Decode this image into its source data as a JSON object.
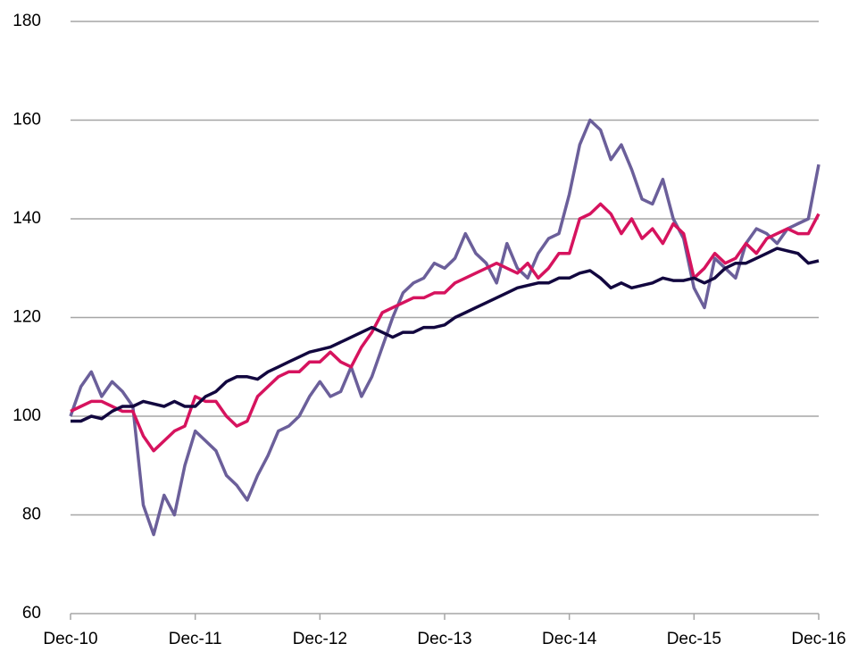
{
  "chart_data": {
    "type": "line",
    "x": [
      "Dec-10",
      "Jan-11",
      "Feb-11",
      "Mar-11",
      "Apr-11",
      "May-11",
      "Jun-11",
      "Jul-11",
      "Aug-11",
      "Sep-11",
      "Oct-11",
      "Nov-11",
      "Dec-11",
      "Jan-12",
      "Feb-12",
      "Mar-12",
      "Apr-12",
      "May-12",
      "Jun-12",
      "Jul-12",
      "Aug-12",
      "Sep-12",
      "Oct-12",
      "Nov-12",
      "Dec-12",
      "Jan-13",
      "Feb-13",
      "Mar-13",
      "Apr-13",
      "May-13",
      "Jun-13",
      "Jul-13",
      "Aug-13",
      "Sep-13",
      "Oct-13",
      "Nov-13",
      "Dec-13",
      "Jan-14",
      "Feb-14",
      "Mar-14",
      "Apr-14",
      "May-14",
      "Jun-14",
      "Jul-14",
      "Aug-14",
      "Sep-14",
      "Oct-14",
      "Nov-14",
      "Dec-14",
      "Jan-15",
      "Feb-15",
      "Mar-15",
      "Apr-15",
      "May-15",
      "Jun-15",
      "Jul-15",
      "Aug-15",
      "Sep-15",
      "Oct-15",
      "Nov-15",
      "Dec-15",
      "Jan-16",
      "Feb-16",
      "Mar-16",
      "Apr-16",
      "May-16",
      "Jun-16",
      "Jul-16",
      "Aug-16",
      "Sep-16",
      "Oct-16",
      "Nov-16",
      "Dec-16"
    ],
    "series": [
      {
        "color": "#6b5f9a",
        "values": [
          100,
          106,
          109,
          104,
          107,
          105,
          102,
          82,
          76,
          84,
          80,
          90,
          97,
          95,
          93,
          88,
          86,
          83,
          88,
          92,
          97,
          98,
          100,
          104,
          107,
          104,
          105,
          110,
          104,
          108,
          114,
          120,
          125,
          127,
          128,
          131,
          130,
          132,
          137,
          133,
          131,
          127,
          135,
          130,
          128,
          133,
          136,
          137,
          145,
          155,
          160,
          158,
          152,
          155,
          150,
          144,
          143,
          148,
          140,
          136,
          126,
          122,
          132,
          130,
          128,
          135,
          138,
          137,
          135,
          138,
          139,
          140,
          151
        ]
      },
      {
        "color": "#d6135e",
        "values": [
          101,
          102,
          103,
          103,
          102,
          101,
          101,
          96,
          93,
          95,
          97,
          98,
          104,
          103,
          103,
          100,
          98,
          99,
          104,
          106,
          108,
          109,
          109,
          111,
          111,
          113,
          111,
          110,
          114,
          117,
          121,
          122,
          123,
          124,
          124,
          125,
          125,
          127,
          128,
          129,
          130,
          131,
          130,
          129,
          131,
          128,
          130,
          133,
          133,
          140,
          141,
          143,
          141,
          137,
          140,
          136,
          138,
          135,
          139,
          137,
          128,
          130,
          133,
          131,
          132,
          135,
          133,
          136,
          137,
          138,
          137,
          137,
          141
        ]
      },
      {
        "color": "#12073f",
        "values": [
          99,
          99,
          100,
          99.5,
          101,
          102,
          102,
          103,
          102.5,
          102,
          103,
          102,
          102,
          104,
          105,
          107,
          108,
          108,
          107.5,
          109,
          110,
          111,
          112,
          113,
          113.5,
          114,
          115,
          116,
          117,
          118,
          117,
          116,
          117,
          117,
          118,
          118,
          118.5,
          120,
          121,
          122,
          123,
          124,
          125,
          126,
          126.5,
          127,
          127,
          128,
          128,
          129,
          129.5,
          128,
          126,
          127,
          126,
          126.5,
          127,
          128,
          127.5,
          127.5,
          128,
          127,
          128,
          130,
          131,
          131,
          132,
          133,
          134,
          133.5,
          133,
          131,
          131.5
        ]
      }
    ],
    "xticks": [
      "Dec-10",
      "Dec-11",
      "Dec-12",
      "Dec-13",
      "Dec-14",
      "Dec-15",
      "Dec-16"
    ],
    "ylim": [
      60,
      180
    ],
    "yticks": [
      60,
      80,
      100,
      120,
      140,
      160,
      180
    ],
    "grid": true
  }
}
